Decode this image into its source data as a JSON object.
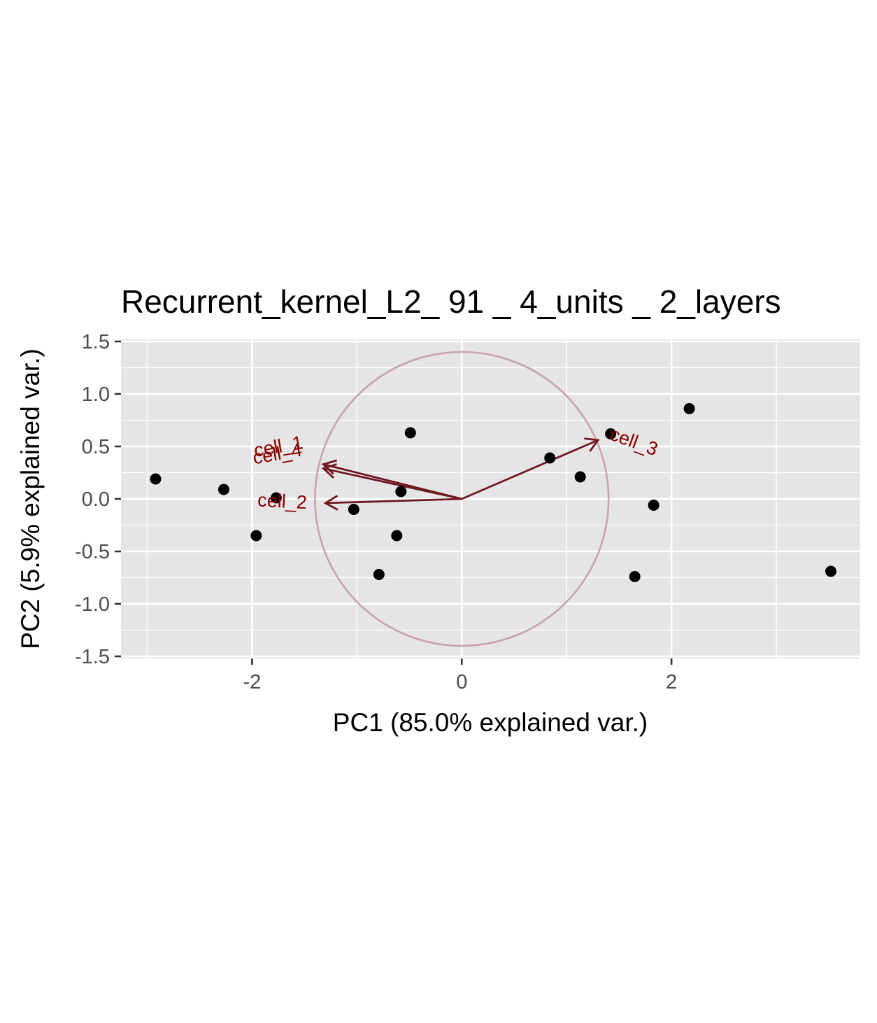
{
  "chart_data": {
    "type": "scatter",
    "title": "Recurrent_kernel_L2_ 91 _ 4_units _ 2_layers",
    "xlabel": "PC1 (85.0% explained var.)",
    "ylabel": "PC2 (5.9% explained var.)",
    "xlim": [
      -3.25,
      3.8
    ],
    "ylim": [
      -1.52,
      1.52
    ],
    "x_ticks": [
      -2,
      0,
      2
    ],
    "x_tick_labels": [
      "-2",
      "0",
      "2"
    ],
    "y_ticks": [
      -1.5,
      -1.0,
      -0.5,
      0.0,
      0.5,
      1.0,
      1.5
    ],
    "y_tick_labels": [
      "-1.5",
      "-1.0",
      "-0.5",
      "0.0",
      "0.5",
      "1.0",
      "1.5"
    ],
    "grid": true,
    "panel_background": "#e5e5e5",
    "point_color": "#000000",
    "arrow_color": "#6e1a1f",
    "label_color": "#8b0000",
    "circle_color": "#c7a3ae",
    "circle_radius": 1.4,
    "points": [
      {
        "x": -2.92,
        "y": 0.19
      },
      {
        "x": -2.27,
        "y": 0.09
      },
      {
        "x": -1.77,
        "y": 0.01
      },
      {
        "x": -1.96,
        "y": -0.35
      },
      {
        "x": -1.03,
        "y": -0.1
      },
      {
        "x": -0.58,
        "y": 0.07
      },
      {
        "x": -0.49,
        "y": 0.63
      },
      {
        "x": -0.62,
        "y": -0.35
      },
      {
        "x": -0.79,
        "y": -0.72
      },
      {
        "x": 0.84,
        "y": 0.39
      },
      {
        "x": 1.13,
        "y": 0.21
      },
      {
        "x": 1.42,
        "y": 0.62
      },
      {
        "x": 2.17,
        "y": 0.86
      },
      {
        "x": 1.83,
        "y": -0.06
      },
      {
        "x": 1.65,
        "y": -0.74
      },
      {
        "x": 3.52,
        "y": -0.69
      }
    ],
    "arrows": [
      {
        "name": "cell_1",
        "x": -1.32,
        "y": 0.33
      },
      {
        "name": "cell_4",
        "x": -1.32,
        "y": 0.29
      },
      {
        "name": "cell_2",
        "x": -1.3,
        "y": -0.04
      },
      {
        "name": "cell_3",
        "x": 1.3,
        "y": 0.56
      }
    ],
    "arrow_labels": [
      {
        "text": "cell_1",
        "x": -1.97,
        "y": 0.4,
        "angle": 10
      },
      {
        "text": "cell_4",
        "x": -1.98,
        "y": 0.33,
        "angle": 10
      },
      {
        "text": "cell_2",
        "x": -1.95,
        "y": -0.07,
        "angle": -3
      },
      {
        "text": "cell_3",
        "x": 1.4,
        "y": 0.57,
        "angle": -20
      }
    ]
  }
}
